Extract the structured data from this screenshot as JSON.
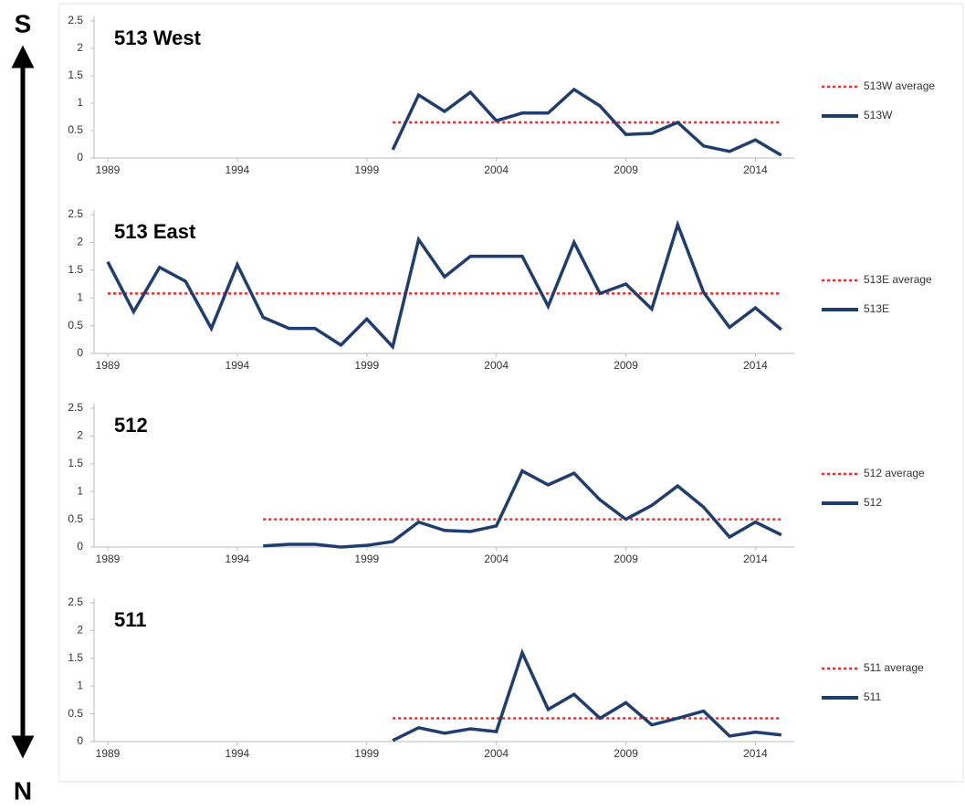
{
  "direction_labels": {
    "top": "S",
    "bottom": "N"
  },
  "chart_data": [
    {
      "type": "line",
      "title": "513 West",
      "x": [
        2000,
        2001,
        2002,
        2003,
        2004,
        2005,
        2006,
        2007,
        2008,
        2009,
        2010,
        2011,
        2012,
        2013,
        2014,
        2015
      ],
      "series": [
        {
          "name": "513W average",
          "color": "#e03030",
          "dashed": true,
          "values": [
            0.65,
            0.65,
            0.65,
            0.65,
            0.65,
            0.65,
            0.65,
            0.65,
            0.65,
            0.65,
            0.65,
            0.65,
            0.65,
            0.65,
            0.65,
            0.65
          ]
        },
        {
          "name": "513W",
          "color": "#1f3d6e",
          "values": [
            0.15,
            1.15,
            0.85,
            1.2,
            0.68,
            0.82,
            0.82,
            1.25,
            0.95,
            0.43,
            0.45,
            0.65,
            0.22,
            0.12,
            0.33,
            0.05
          ]
        }
      ],
      "xlim": [
        1989,
        2015.5
      ],
      "xticks": [
        1989,
        1994,
        1999,
        2004,
        2009,
        2014
      ],
      "ylim": [
        0,
        2.5
      ],
      "yticks": [
        0,
        0.5,
        1,
        1.5,
        2,
        2.5
      ]
    },
    {
      "type": "line",
      "title": "513 East",
      "x": [
        1989,
        1990,
        1991,
        1992,
        1993,
        1994,
        1995,
        1996,
        1997,
        1998,
        1999,
        2000,
        2001,
        2002,
        2003,
        2004,
        2005,
        2006,
        2007,
        2008,
        2009,
        2010,
        2011,
        2012,
        2013,
        2014,
        2015
      ],
      "series": [
        {
          "name": "513E average",
          "color": "#e03030",
          "dashed": true,
          "values": [
            1.08,
            1.08,
            1.08,
            1.08,
            1.08,
            1.08,
            1.08,
            1.08,
            1.08,
            1.08,
            1.08,
            1.08,
            1.08,
            1.08,
            1.08,
            1.08,
            1.08,
            1.08,
            1.08,
            1.08,
            1.08,
            1.08,
            1.08,
            1.08,
            1.08,
            1.08,
            1.08
          ]
        },
        {
          "name": "513E",
          "color": "#1f3d6e",
          "values": [
            1.65,
            0.75,
            1.55,
            1.3,
            0.45,
            1.6,
            0.65,
            0.45,
            0.45,
            0.15,
            0.62,
            0.12,
            2.05,
            1.38,
            1.75,
            1.75,
            1.75,
            0.85,
            2.0,
            1.08,
            1.25,
            0.8,
            2.32,
            1.1,
            0.47,
            0.82,
            0.43
          ]
        }
      ],
      "xlim": [
        1989,
        2015.5
      ],
      "xticks": [
        1989,
        1994,
        1999,
        2004,
        2009,
        2014
      ],
      "ylim": [
        0,
        2.5
      ],
      "yticks": [
        0,
        0.5,
        1,
        1.5,
        2,
        2.5
      ]
    },
    {
      "type": "line",
      "title": "512",
      "x": [
        1995,
        1996,
        1997,
        1998,
        1999,
        2000,
        2001,
        2002,
        2003,
        2004,
        2005,
        2006,
        2007,
        2008,
        2009,
        2010,
        2011,
        2012,
        2013,
        2014,
        2015
      ],
      "series": [
        {
          "name": "512 average",
          "color": "#e03030",
          "dashed": true,
          "values": [
            0.5,
            0.5,
            0.5,
            0.5,
            0.5,
            0.5,
            0.5,
            0.5,
            0.5,
            0.5,
            0.5,
            0.5,
            0.5,
            0.5,
            0.5,
            0.5,
            0.5,
            0.5,
            0.5,
            0.5,
            0.5
          ]
        },
        {
          "name": "512",
          "color": "#1f3d6e",
          "values": [
            0.02,
            0.05,
            0.05,
            0.0,
            0.03,
            0.1,
            0.45,
            0.3,
            0.28,
            0.38,
            1.37,
            1.12,
            1.33,
            0.85,
            0.5,
            0.75,
            1.1,
            0.72,
            0.18,
            0.45,
            0.22
          ]
        }
      ],
      "xlim": [
        1989,
        2015.5
      ],
      "xticks": [
        1989,
        1994,
        1999,
        2004,
        2009,
        2014
      ],
      "ylim": [
        0,
        2.5
      ],
      "yticks": [
        0,
        0.5,
        1,
        1.5,
        2,
        2.5
      ]
    },
    {
      "type": "line",
      "title": "511",
      "x": [
        2000,
        2001,
        2002,
        2003,
        2004,
        2005,
        2006,
        2007,
        2008,
        2009,
        2010,
        2011,
        2012,
        2013,
        2014,
        2015
      ],
      "series": [
        {
          "name": "511 average",
          "color": "#e03030",
          "dashed": true,
          "values": [
            0.42,
            0.42,
            0.42,
            0.42,
            0.42,
            0.42,
            0.42,
            0.42,
            0.42,
            0.42,
            0.42,
            0.42,
            0.42,
            0.42,
            0.42,
            0.42
          ]
        },
        {
          "name": "511",
          "color": "#1f3d6e",
          "values": [
            0.02,
            0.25,
            0.15,
            0.23,
            0.18,
            1.6,
            0.58,
            0.85,
            0.42,
            0.7,
            0.3,
            0.42,
            0.55,
            0.1,
            0.17,
            0.12
          ]
        }
      ],
      "xlim": [
        1989,
        2015.5
      ],
      "xticks": [
        1989,
        1994,
        1999,
        2004,
        2009,
        2014
      ],
      "ylim": [
        0,
        2.5
      ],
      "yticks": [
        0,
        0.5,
        1,
        1.5,
        2,
        2.5
      ]
    }
  ]
}
